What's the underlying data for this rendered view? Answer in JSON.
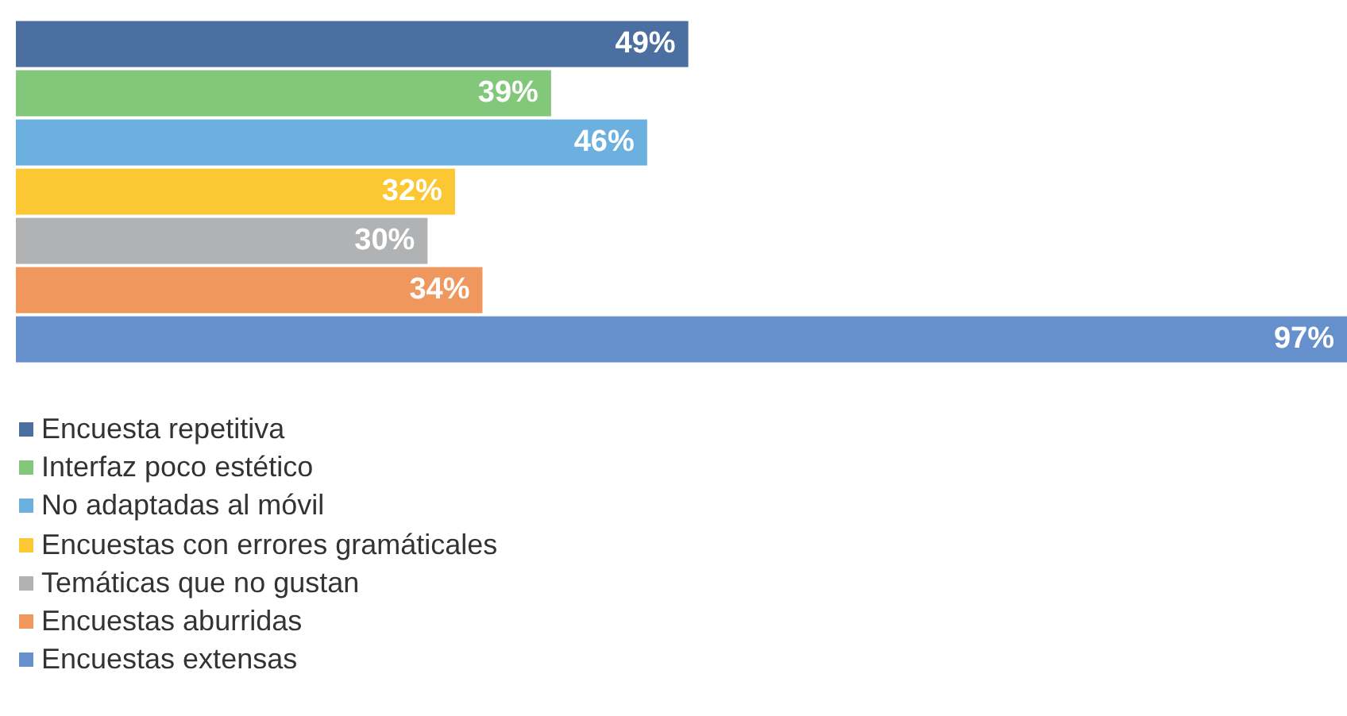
{
  "chart_data": {
    "type": "bar",
    "orientation": "horizontal",
    "stacked": true,
    "legend": "bottom left",
    "categories": [
      null,
      null,
      null,
      null,
      null,
      null,
      null
    ],
    "series": [
      {
        "name": "Encuesta repetitiva",
        "color": "#4a6fa0",
        "values": [
          49,
          null,
          null,
          null,
          null,
          null,
          null
        ],
        "value_labels": [
          "49%",
          null,
          null,
          null,
          null,
          null,
          null
        ]
      },
      {
        "name": "Interfaz poco estético",
        "color": "#82c77a",
        "values": [
          null,
          39,
          null,
          null,
          null,
          null,
          null
        ],
        "value_labels": [
          null,
          "39%",
          null,
          null,
          null,
          null,
          null
        ]
      },
      {
        "name": "No adaptadas al móvil",
        "color": "#6cb0e0",
        "values": [
          null,
          null,
          46,
          null,
          null,
          null,
          null
        ],
        "value_labels": [
          null,
          null,
          "46%",
          null,
          null,
          null,
          null
        ]
      },
      {
        "name": "Encuestas con errores gramáticales",
        "color": "#fbc833",
        "values": [
          null,
          null,
          null,
          32,
          null,
          null,
          null
        ],
        "value_labels": [
          null,
          null,
          null,
          "32%",
          null,
          null,
          null
        ]
      },
      {
        "name": "Temáticas que no gustan",
        "color": "#b0b2b4",
        "values": [
          null,
          null,
          null,
          null,
          30,
          null,
          null
        ],
        "value_labels": [
          null,
          null,
          null,
          null,
          "30%",
          null,
          null
        ]
      },
      {
        "name": "Encuestas aburridas",
        "color": "#f0975e",
        "values": [
          null,
          null,
          null,
          null,
          null,
          34,
          null
        ],
        "value_labels": [
          null,
          null,
          null,
          null,
          null,
          "34%",
          null
        ]
      },
      {
        "name": "Encuestas extensas",
        "color": "#6690cc",
        "values": [
          null,
          null,
          null,
          null,
          null,
          null,
          97
        ],
        "value_labels": [
          null,
          null,
          null,
          null,
          null,
          null,
          "97%"
        ]
      }
    ]
  }
}
